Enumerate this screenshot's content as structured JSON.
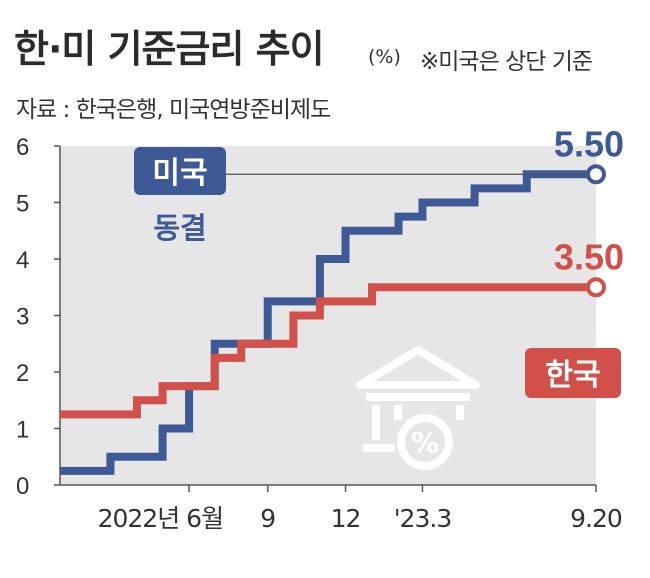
{
  "title": "한·미 기준금리 추이",
  "unit": "(%)",
  "note": "※미국은 상단 기준",
  "source": "자료 : 한국은행, 미국연방준비제도",
  "chart_data": {
    "type": "line",
    "step": true,
    "ylim": [
      0,
      6
    ],
    "yticks": [
      "0",
      "1",
      "2",
      "3",
      "4",
      "5",
      "6"
    ],
    "xticks": [
      {
        "x": "2022-06",
        "label": "2022년 6월"
      },
      {
        "x": "2022-09",
        "label": "9"
      },
      {
        "x": "2022-12",
        "label": "12"
      },
      {
        "x": "2023-03",
        "label": "'23.3"
      },
      {
        "x": "2023-09-20",
        "label": "9.20"
      }
    ],
    "series": [
      {
        "name": "미국",
        "color": "#3d5a96",
        "sublabel": "동결",
        "end_label": "5.50",
        "x": [
          "2022-01",
          "2022-03",
          "2022-05",
          "2022-06",
          "2022-07",
          "2022-09",
          "2022-11",
          "2022-12",
          "2023-02",
          "2023-03",
          "2023-05",
          "2023-07",
          "2023-09-20"
        ],
        "y": [
          0.25,
          0.5,
          1.0,
          1.75,
          2.5,
          3.25,
          4.0,
          4.5,
          4.75,
          5.0,
          5.25,
          5.5,
          5.5
        ]
      },
      {
        "name": "한국",
        "color": "#d2504a",
        "end_label": "3.50",
        "x": [
          "2022-01",
          "2022-04",
          "2022-05",
          "2022-07",
          "2022-08",
          "2022-10",
          "2022-11",
          "2023-01",
          "2023-09-20"
        ],
        "y": [
          1.25,
          1.5,
          1.75,
          2.25,
          2.5,
          3.0,
          3.25,
          3.5,
          3.5
        ]
      }
    ]
  }
}
